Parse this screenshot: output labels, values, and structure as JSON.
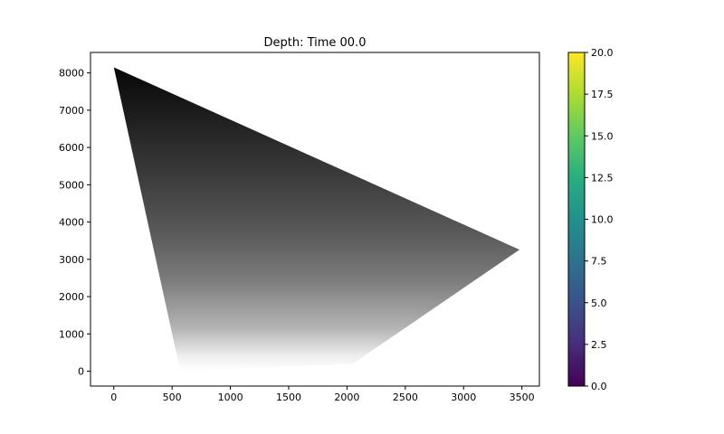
{
  "chart_data": {
    "type": "heatmap",
    "title": "Depth: Time 00.0",
    "xlabel": "",
    "ylabel": "",
    "xlim": [
      -200,
      3650
    ],
    "ylim": [
      -400,
      8550
    ],
    "xticks": [
      0,
      500,
      1000,
      1500,
      2000,
      2500,
      3000,
      3500
    ],
    "yticks": [
      0,
      1000,
      2000,
      3000,
      4000,
      5000,
      6000,
      7000,
      8000
    ],
    "grid": false,
    "colormap": "gray",
    "domain_polygon": [
      {
        "x": 0,
        "y": 8150
      },
      {
        "x": 3480,
        "y": 3260
      },
      {
        "x": 2050,
        "y": 200
      },
      {
        "x": 570,
        "y": 0
      }
    ],
    "colorbar": {
      "colormap": "viridis",
      "range": [
        0.0,
        20.0
      ],
      "ticks": [
        "0.0",
        "2.5",
        "5.0",
        "7.5",
        "10.0",
        "12.5",
        "15.0",
        "17.5",
        "20.0"
      ]
    }
  }
}
